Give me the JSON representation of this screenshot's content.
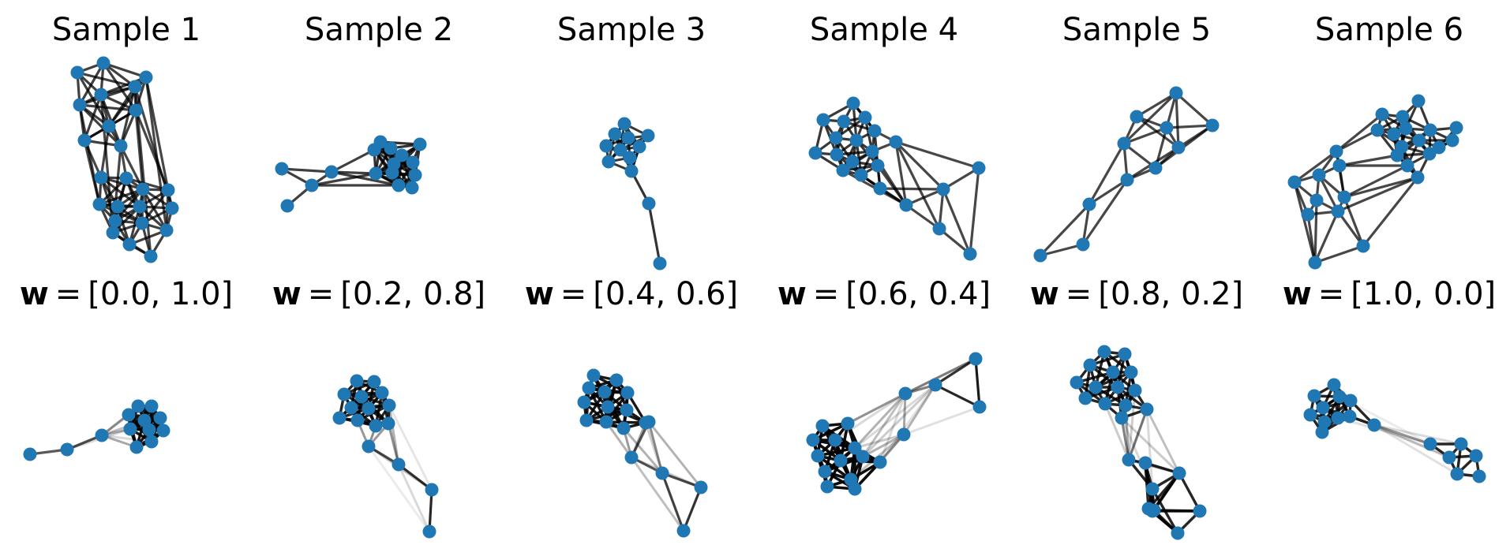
{
  "titles": [
    "Sample 1",
    "Sample 2",
    "Sample 3",
    "Sample 4",
    "Sample 5",
    "Sample 6"
  ],
  "weights": [
    {
      "symbol": "w",
      "equals": "=",
      "value": "[0.0, 1.0]"
    },
    {
      "symbol": "w",
      "equals": "=",
      "value": "[0.2, 0.8]"
    },
    {
      "symbol": "w",
      "equals": "=",
      "value": "[0.4, 0.6]"
    },
    {
      "symbol": "w",
      "equals": "=",
      "value": "[0.6, 0.4]"
    },
    {
      "symbol": "w",
      "equals": "=",
      "value": "[0.8, 0.2]"
    },
    {
      "symbol": "w",
      "equals": "=",
      "value": "[1.0, 0.0]"
    }
  ],
  "colors": {
    "node": "#1f77b4",
    "edge": "#000000"
  }
}
